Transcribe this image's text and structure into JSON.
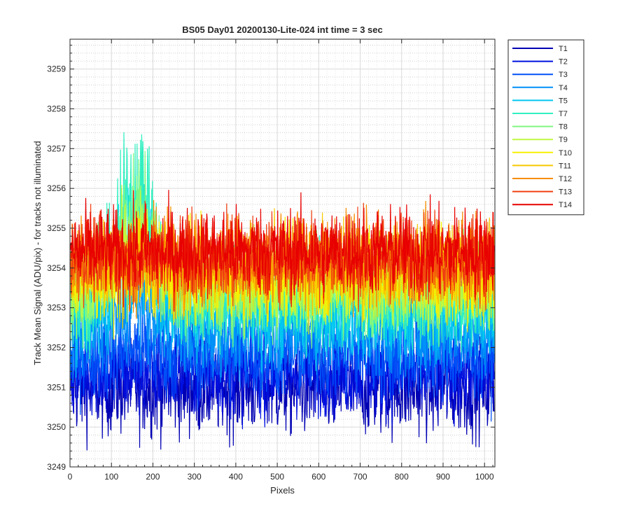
{
  "chart_data": {
    "type": "line",
    "title": "BS05 Day01 20200130-Lite-024 int time = 3 sec",
    "xlabel": "Pixels",
    "ylabel": "Track Mean Signal (ADU/pix) - for tracks not illuminated",
    "xlim": [
      0,
      1025
    ],
    "ylim": [
      3249,
      3259.75
    ],
    "x_ticks": [
      0,
      100,
      200,
      300,
      400,
      500,
      600,
      700,
      800,
      900,
      1000
    ],
    "y_ticks": [
      3249,
      3250,
      3251,
      3252,
      3253,
      3254,
      3255,
      3256,
      3257,
      3258,
      3259
    ],
    "grid": "major and minor",
    "legend_position": "outside-top-right",
    "num_points_per_series": 1024,
    "x_start": 1,
    "x_step": 1,
    "series": [
      {
        "name": "T1",
        "color": "#0000B4",
        "mean": 3251.0,
        "noise_sd": 0.6,
        "bump_amplitude": 0.0
      },
      {
        "name": "T2",
        "color": "#0010E0",
        "mean": 3251.4,
        "noise_sd": 0.55,
        "bump_amplitude": 0.0
      },
      {
        "name": "T3",
        "color": "#0050F8",
        "mean": 3251.8,
        "noise_sd": 0.55,
        "bump_amplitude": 0.2
      },
      {
        "name": "T4",
        "color": "#0090F8",
        "mean": 3252.4,
        "noise_sd": 0.55,
        "bump_amplitude": 0.8
      },
      {
        "name": "T5",
        "color": "#00C8F0",
        "mean": 3252.9,
        "noise_sd": 0.6,
        "bump_amplitude": 2.0
      },
      {
        "name": "T7",
        "color": "#30F0C0",
        "mean": 3253.3,
        "noise_sd": 0.6,
        "bump_amplitude": 2.6
      },
      {
        "name": "T8",
        "color": "#80F880",
        "mean": 3253.5,
        "noise_sd": 0.6,
        "bump_amplitude": 1.8
      },
      {
        "name": "T9",
        "color": "#C0F840",
        "mean": 3253.6,
        "noise_sd": 0.55,
        "bump_amplitude": 1.0
      },
      {
        "name": "T10",
        "color": "#F8F000",
        "mean": 3253.8,
        "noise_sd": 0.55,
        "bump_amplitude": 0.3
      },
      {
        "name": "T11",
        "color": "#F8C800",
        "mean": 3254.0,
        "noise_sd": 0.55,
        "bump_amplitude": 0.0
      },
      {
        "name": "T12",
        "color": "#F88C00",
        "mean": 3254.2,
        "noise_sd": 0.55,
        "bump_amplitude": 0.0
      },
      {
        "name": "T13",
        "color": "#F04010",
        "mean": 3254.3,
        "noise_sd": 0.55,
        "bump_amplitude": 0.0
      },
      {
        "name": "T14",
        "color": "#E80000",
        "mean": 3254.4,
        "noise_sd": 0.55,
        "bump_amplitude": 0.0
      }
    ]
  }
}
